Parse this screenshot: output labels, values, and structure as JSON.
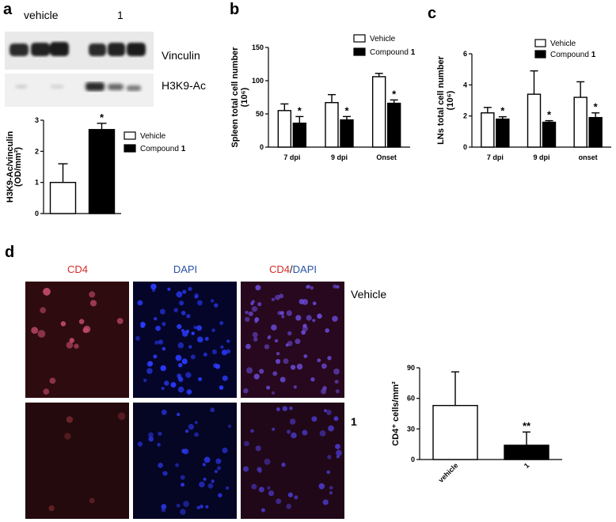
{
  "panels": {
    "a": {
      "letter": "a",
      "lane_labels": [
        "vehicle",
        "1"
      ],
      "blot_labels": [
        "Vinculin",
        "H3K9-Ac"
      ]
    },
    "b": {
      "letter": "b"
    },
    "c": {
      "letter": "c"
    },
    "d": {
      "letter": "d",
      "column_headers": [
        {
          "parts": [
            {
              "text": "CD4",
              "color": "#d42a2a"
            }
          ]
        },
        {
          "parts": [
            {
              "text": "DAPI",
              "color": "#2952a3"
            }
          ]
        },
        {
          "parts": [
            {
              "text": "CD4",
              "color": "#d42a2a"
            },
            {
              "text": "/",
              "color": "#111111"
            },
            {
              "text": "DAPI",
              "color": "#2952a3"
            }
          ]
        }
      ],
      "row_labels": [
        "Vehicle",
        "1"
      ]
    }
  },
  "colors": {
    "cd4_red": "#d42a2a",
    "dapi_blue": "#2952a3",
    "bar_black": "#000000",
    "bar_white": "#ffffff"
  },
  "chart_data": [
    {
      "panel": "a",
      "type": "bar",
      "categories": [
        "Vehicle",
        "Compound 1"
      ],
      "series": [
        {
          "name": "",
          "values": [
            1.0,
            2.7
          ],
          "errors": [
            0.6,
            0.2
          ]
        }
      ],
      "ylabel": "H3K9-Ac/vinculin (OD/mm²)",
      "ylim": [
        0,
        3
      ],
      "yticks": [
        "0",
        "1",
        "2",
        "3"
      ],
      "significance": [
        "",
        "*"
      ],
      "legend": {
        "entries": [
          "Vehicle",
          "Compound 1"
        ],
        "bold_suffix": "1",
        "position": "right"
      }
    },
    {
      "panel": "b",
      "type": "bar",
      "categories": [
        "7 dpi",
        "9 dpi",
        "Onset"
      ],
      "series": [
        {
          "name": "Vehicle",
          "values": [
            55,
            67,
            106
          ],
          "errors": [
            10,
            12,
            5
          ]
        },
        {
          "name": "Compound 1",
          "values": [
            36,
            41,
            66
          ],
          "errors": [
            10,
            5,
            5
          ]
        }
      ],
      "ylabel": "Spleen total cell number (10⁶)",
      "ylim": [
        0,
        150
      ],
      "yticks": [
        "0",
        "50",
        "100",
        "150"
      ],
      "significance": [
        "*",
        "*",
        "*"
      ],
      "legend": {
        "entries": [
          "Vehicle",
          "Compound 1"
        ],
        "bold_suffix": "1",
        "position": "top-right"
      }
    },
    {
      "panel": "c",
      "type": "bar",
      "categories": [
        "7 dpi",
        "9 dpi",
        "onset"
      ],
      "series": [
        {
          "name": "Vehicle",
          "values": [
            2.2,
            3.4,
            3.2
          ],
          "errors": [
            0.35,
            1.5,
            1.0
          ]
        },
        {
          "name": "Compound 1",
          "values": [
            1.8,
            1.6,
            1.9
          ],
          "errors": [
            0.15,
            0.1,
            0.3
          ]
        }
      ],
      "ylabel": "LNs total cell number (10⁶)",
      "ylim": [
        0,
        6
      ],
      "yticks": [
        "0",
        "2",
        "4",
        "6"
      ],
      "significance": [
        "*",
        "*",
        "*"
      ],
      "legend": {
        "entries": [
          "Vehicle",
          "Compound 1"
        ],
        "bold_suffix": "1",
        "position": "top-right"
      }
    },
    {
      "panel": "d",
      "type": "bar",
      "categories": [
        "vehicle",
        "1"
      ],
      "series": [
        {
          "name": "",
          "values": [
            53,
            14
          ],
          "errors": [
            33,
            13
          ]
        }
      ],
      "ylabel": "CD4⁺ cells/mm²",
      "ylim": [
        0,
        90
      ],
      "yticks": [
        "0",
        "30",
        "60",
        "90"
      ],
      "significance": [
        "",
        "**"
      ]
    }
  ]
}
